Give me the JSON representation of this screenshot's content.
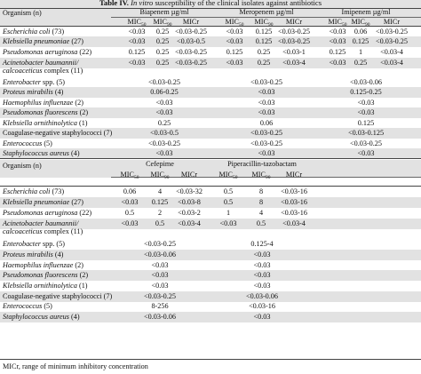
{
  "title": {
    "label": "Table IV.",
    "text_italic": "In vitro",
    "text_rest": " susceptibility of the clinical isolates against antibiotics"
  },
  "table1": {
    "organism_header": "Organism (n)",
    "groups": [
      "Biapenem µg/ml",
      "Meropenem µg/ml",
      "Imipenem µg/ml"
    ],
    "subheaders": [
      "MIC50",
      "MIC90",
      "MICr",
      "MIC50",
      "MIC90",
      "MICr",
      "MIC50",
      "MIC90",
      "MICr"
    ],
    "rows": [
      {
        "org": "Escherichia coli",
        "n": " (73)",
        "cells": [
          "<0.03",
          "0.25",
          "<0.03-0.25",
          "<0.03",
          "0.125",
          "<0.03-0.25",
          "<0.03",
          "0.06",
          "<0.03-0.25"
        ]
      },
      {
        "org": "Klebsiella pneumoniae",
        "n": " (27)",
        "cells": [
          "<0.03",
          "0.25",
          "<0.03-0.5",
          "<0.03",
          "0.125",
          "<0.03-0.25",
          "<0.03",
          "0.125",
          "<0.03-0.25"
        ]
      },
      {
        "org": "Pseudomonas aeruginosa",
        "n": " (22)",
        "cells": [
          "0.125",
          "0.25",
          "<0.03-0.25",
          "0.125",
          "0.25",
          "<0.03-1",
          "0.125",
          "1",
          "<0.03-4"
        ]
      },
      {
        "org": "Acinetobacter baumannii/",
        "org2": "calcoaceticus",
        "n2": " complex (11)",
        "cells": [
          "<0.03",
          "0.25",
          "<0.03-0.25",
          "<0.03",
          "0.25",
          "<0.03-4",
          "<0.03",
          "0.25",
          "<0.03-4"
        ]
      },
      {
        "org": "Enterobacter",
        "n": " spp. (5)",
        "single": [
          "<0.03-0.25",
          "<0.03-0.25",
          "<0.03-0.06"
        ]
      },
      {
        "org": "Proteus mirabilis",
        "n": " (4)",
        "single": [
          "0.06-0.25",
          "<0.03",
          "0.125-0.25"
        ]
      },
      {
        "org": "Haemophilus influenzae",
        "n": " (2)",
        "single": [
          "<0.03",
          "<0.03",
          "<0.03"
        ]
      },
      {
        "org": "Pseudomonas fluorescens",
        "n": " (2)",
        "single": [
          "<0.03",
          "<0.03",
          "<0.03"
        ]
      },
      {
        "org": "Klebsiella ornithinolytica",
        "n": " (1)",
        "single": [
          "0.25",
          "0.06",
          "0.125"
        ]
      },
      {
        "org": "",
        "n": "Coagulase-negative staphylococci (7)",
        "single": [
          "<0.03-0.5",
          "<0.03-0.25",
          "<0.03-0.125"
        ]
      },
      {
        "org": "Enterococcus",
        "n": " (5)",
        "single": [
          "<0.03-0.25",
          "<0.03-0.25",
          "<0.03-0.25"
        ]
      },
      {
        "org": "Staphylococcus aureus",
        "n": " (4)",
        "single": [
          "<0.03",
          "<0.03",
          "<0.03"
        ]
      }
    ]
  },
  "table2": {
    "organism_header": "Organism (n)",
    "groups": [
      "Cefepime",
      "Piperacillin-tazobactam"
    ],
    "subheaders": [
      "MIC50",
      "MIC90",
      "MICr",
      "MIC50",
      "MIC90",
      "MICr"
    ],
    "rows": [
      {
        "org": "Escherichia coli",
        "n": " (73)",
        "cells": [
          "0.06",
          "4",
          "<0.03-32",
          "0.5",
          "8",
          "<0.03-16"
        ]
      },
      {
        "org": "Klebsiella pneumoniae",
        "n": " (27)",
        "cells": [
          "<0.03",
          "0.125",
          "<0.03-8",
          "0.5",
          "8",
          "<0.03-16"
        ]
      },
      {
        "org": "Pseudomonas aeruginosa",
        "n": " (22)",
        "cells": [
          "0.5",
          "2",
          "<0.03-2",
          "1",
          "4",
          "<0.03-16"
        ]
      },
      {
        "org": "Acinetobacter baumannii/",
        "org2": "calcoaceticus",
        "n2": " complex (11)",
        "cells": [
          "<0.03",
          "0.5",
          "<0.03-4",
          "<0.03",
          "0.5",
          "<0.03-4"
        ]
      },
      {
        "org": "Enterobacter",
        "n": " spp. (5)",
        "single": [
          "<0.03-0.25",
          "0.125-4"
        ]
      },
      {
        "org": "Proteus mirabilis",
        "n": " (4)",
        "single": [
          "<0.03-0.06",
          "<0.03"
        ]
      },
      {
        "org": "Haemophilus influenzae",
        "n": " (2)",
        "single": [
          "<0.03",
          "<0.03"
        ]
      },
      {
        "org": "Pseudomonas fluorescens",
        "n": " (2)",
        "single": [
          "<0.03",
          "<0.03"
        ]
      },
      {
        "org": "Klebsiella ornithinolytica",
        "n": " (1)",
        "single": [
          "<0.03",
          "<0.03"
        ]
      },
      {
        "org": "",
        "n": "Coagulase-negative staphylococci (7)",
        "single": [
          "<0.03-0.25",
          "<0.03-0.06"
        ]
      },
      {
        "org": "Enterococcus",
        "n": " (5)",
        "single": [
          "8-256",
          "<0.03-16"
        ]
      },
      {
        "org": "Staphylococcus aureus",
        "n": " (4)",
        "single": [
          "<0.03-0.06",
          "<0.03"
        ]
      }
    ]
  },
  "footnote": "MICr, range of minimum inhibitory concentration"
}
